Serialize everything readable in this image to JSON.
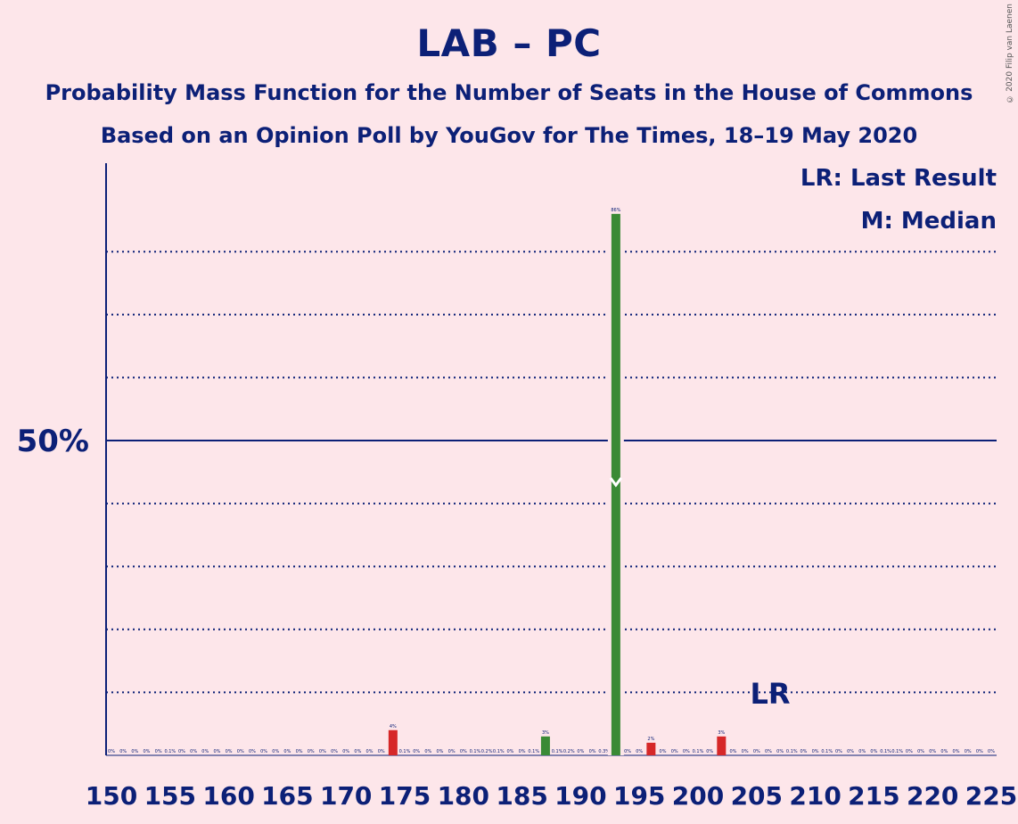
{
  "title": "LAB – PC",
  "subtitle_1": "Probability Mass Function for the Number of Seats in the House of Commons",
  "subtitle_2": "Based on an Opinion Poll by YouGov for The Times, 18–19 May 2020",
  "copyright": "© 2020 Filip van Laenen",
  "legend": {
    "last_result": "LR: Last Result",
    "median": "M: Median"
  },
  "colors": {
    "background": "#fde6ea",
    "text": "#0c2077",
    "bar_default": "#d62728",
    "bar_median": "#3a8a35",
    "marker": "#ffffff"
  },
  "chart_data": {
    "type": "bar",
    "x": [
      150,
      151,
      152,
      153,
      154,
      155,
      156,
      157,
      158,
      159,
      160,
      161,
      162,
      163,
      164,
      165,
      166,
      167,
      168,
      169,
      170,
      171,
      172,
      173,
      174,
      175,
      176,
      177,
      178,
      179,
      180,
      181,
      182,
      183,
      184,
      185,
      186,
      187,
      188,
      189,
      190,
      191,
      192,
      193,
      194,
      195,
      196,
      197,
      198,
      199,
      200,
      201,
      202,
      203,
      204,
      205,
      206,
      207,
      208,
      209,
      210,
      211,
      212,
      213,
      214,
      215,
      216,
      217,
      218,
      219,
      220,
      221,
      222,
      223,
      224,
      225
    ],
    "values": [
      0,
      0,
      0,
      0,
      0,
      0.1,
      0,
      0,
      0,
      0,
      0,
      0,
      0,
      0,
      0,
      0,
      0,
      0,
      0,
      0,
      0,
      0,
      0,
      0,
      4,
      0.1,
      0,
      0,
      0,
      0,
      0,
      0.1,
      0.2,
      0.1,
      0,
      0,
      0.1,
      3,
      0.1,
      0.2,
      0,
      0,
      0.3,
      86,
      0,
      0,
      2,
      0,
      0,
      0,
      0.1,
      0,
      3,
      0,
      0,
      0,
      0,
      0,
      0.1,
      0,
      0,
      0.1,
      0,
      0,
      0,
      0,
      0.1,
      0.1,
      0,
      0,
      0,
      0,
      0,
      0,
      0,
      0
    ],
    "value_labels": [
      "0%",
      "0%",
      "0%",
      "0%",
      "0%",
      "0.1%",
      "0%",
      "0%",
      "0%",
      "0%",
      "0%",
      "0%",
      "0%",
      "0%",
      "0%",
      "0%",
      "0%",
      "0%",
      "0%",
      "0%",
      "0%",
      "0%",
      "0%",
      "0%",
      "4%",
      "0.1%",
      "0%",
      "0%",
      "0%",
      "0%",
      "0%",
      "0.1%",
      "0.2%",
      "0.1%",
      "0%",
      "0%",
      "0.1%",
      "3%",
      "0.1%",
      "0.2%",
      "0%",
      "0%",
      "0.3%",
      "86%",
      "0%",
      "0%",
      "2%",
      "0%",
      "0%",
      "0%",
      "0.1%",
      "0%",
      "3%",
      "0%",
      "0%",
      "0%",
      "0%",
      "0%",
      "0.1%",
      "0%",
      "0%",
      "0.1%",
      "0%",
      "0%",
      "0%",
      "0%",
      "0.1%",
      "0.1%",
      "0%",
      "0%",
      "0%",
      "0%",
      "0%",
      "0%",
      "0%",
      "0%"
    ],
    "green_bars": [
      187,
      193
    ],
    "median": 193,
    "last_result": 206,
    "last_result_label": "LR",
    "x_ticks": [
      150,
      155,
      160,
      165,
      170,
      175,
      180,
      185,
      190,
      195,
      200,
      205,
      210,
      215,
      220,
      225
    ],
    "x_tick_labels": [
      "150",
      "155",
      "160",
      "165",
      "170",
      "175",
      "180",
      "185",
      "190",
      "195",
      "200",
      "205",
      "210",
      "215",
      "220",
      "225"
    ],
    "y_tick_label": "50%",
    "y_tick_value": 50,
    "ylim": [
      0,
      94
    ],
    "gridlines_every": 10
  }
}
